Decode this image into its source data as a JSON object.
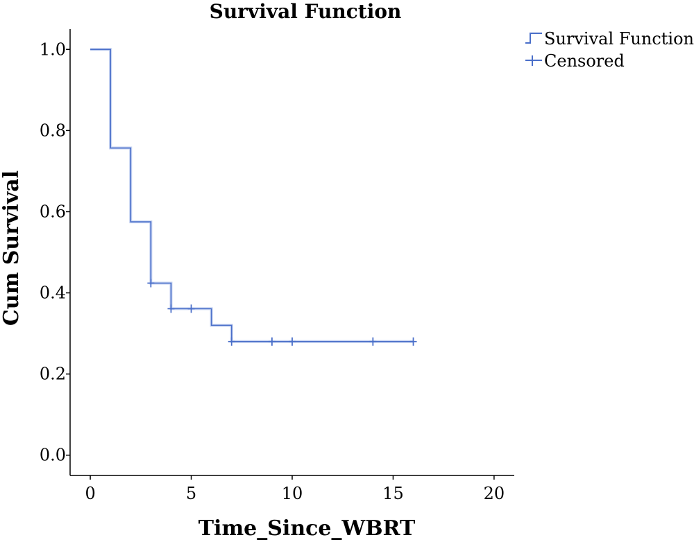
{
  "chart_data": {
    "type": "line",
    "title": "Survival Function",
    "xlabel": "Time_Since_WBRT",
    "ylabel": "Cum Survival",
    "xlim": [
      -1,
      21
    ],
    "ylim": [
      -0.05,
      1.05
    ],
    "x_ticks": [
      0,
      5,
      10,
      15,
      20
    ],
    "x_tick_labels": [
      "0",
      "5",
      "10",
      "15",
      "20"
    ],
    "y_ticks": [
      0.0,
      0.2,
      0.4,
      0.6,
      0.8,
      1.0
    ],
    "y_tick_labels": [
      "0.0",
      "0.2",
      "0.4",
      "0.6",
      "0.8",
      "1.0"
    ],
    "grid": false,
    "legend_position": "top-right",
    "legend": [
      {
        "label": "Survival Function",
        "marker": "step"
      },
      {
        "label": "Censored",
        "marker": "cross"
      }
    ],
    "series": [
      {
        "name": "Survival Function",
        "step": true,
        "points": [
          {
            "x": 0,
            "y": 1.0
          },
          {
            "x": 1,
            "y": 0.757
          },
          {
            "x": 2,
            "y": 0.575
          },
          {
            "x": 3,
            "y": 0.424
          },
          {
            "x": 4,
            "y": 0.361
          },
          {
            "x": 6,
            "y": 0.32
          },
          {
            "x": 7,
            "y": 0.28
          },
          {
            "x": 16,
            "y": 0.28
          }
        ]
      },
      {
        "name": "Censored",
        "points": [
          {
            "x": 3,
            "y": 0.424
          },
          {
            "x": 4,
            "y": 0.361
          },
          {
            "x": 5,
            "y": 0.361
          },
          {
            "x": 7,
            "y": 0.28
          },
          {
            "x": 9,
            "y": 0.28
          },
          {
            "x": 10,
            "y": 0.28
          },
          {
            "x": 14,
            "y": 0.28
          },
          {
            "x": 16,
            "y": 0.28
          }
        ]
      }
    ],
    "colors": {
      "line": "#4a6fc9",
      "censor": "#4a6fc9",
      "axis": "#000000"
    }
  }
}
